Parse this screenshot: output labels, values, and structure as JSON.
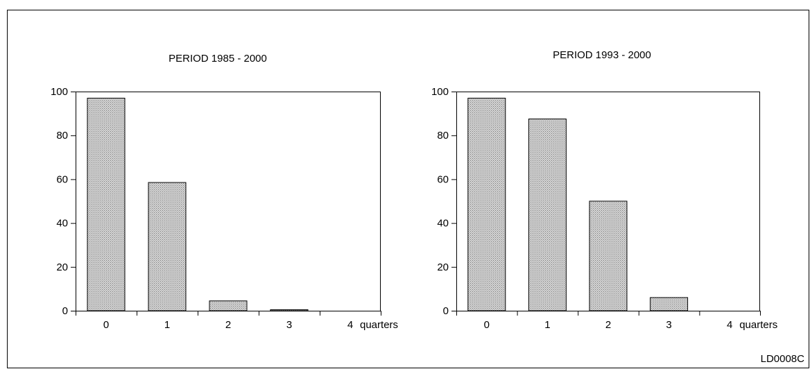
{
  "figure_code": "LD0008C",
  "colors": {
    "bar_fill": "#bdbdbd",
    "bar_stroke": "#000000",
    "axis": "#000000"
  },
  "chart_data": [
    {
      "type": "bar",
      "title": "PERIOD 1985 - 2000",
      "categories": [
        "0",
        "1",
        "2",
        "3",
        "4"
      ],
      "unit_label": "quarters",
      "values": [
        97,
        58.5,
        4.5,
        0.5,
        0
      ],
      "yticks": [
        "0",
        "20",
        "40",
        "60",
        "80",
        "100"
      ],
      "ylim": [
        0,
        100
      ],
      "xlabel": "",
      "ylabel": "",
      "grid": false,
      "legend": "none"
    },
    {
      "type": "bar",
      "title": "PERIOD 1993 - 2000",
      "categories": [
        "0",
        "1",
        "2",
        "3",
        "4"
      ],
      "unit_label": "quarters",
      "values": [
        97,
        87.5,
        50,
        6,
        0
      ],
      "yticks": [
        "0",
        "20",
        "40",
        "60",
        "80",
        "100"
      ],
      "ylim": [
        0,
        100
      ],
      "xlabel": "",
      "ylabel": "",
      "grid": false,
      "legend": "none"
    }
  ]
}
